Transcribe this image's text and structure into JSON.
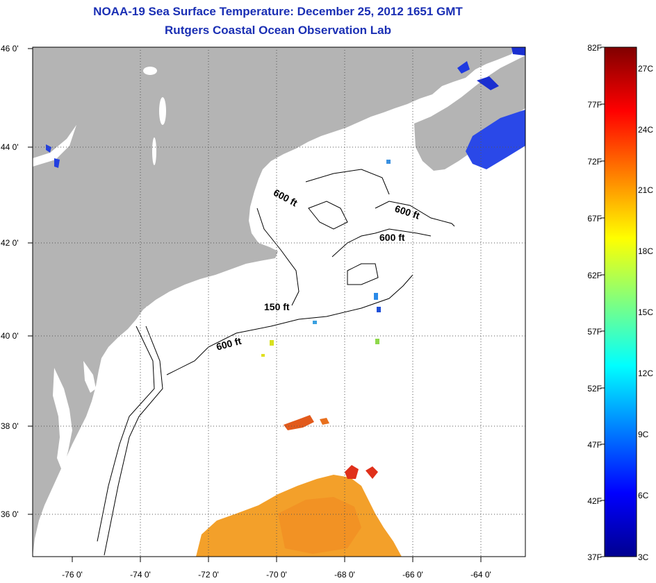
{
  "header": {
    "title": "NOAA-19 Sea Surface Temperature:  December 25, 2012 1651 GMT",
    "subtitle": "Rutgers Coastal Ocean Observation Lab"
  },
  "map": {
    "lon_ticks": [
      "-76 0'",
      "-74 0'",
      "-72 0'",
      "-70 0'",
      "-68 0'",
      "-66 0'",
      "-64 0'"
    ],
    "lat_ticks": [
      "46 0'",
      "44 0'",
      "42 0'",
      "40 0'",
      "38 0'",
      "36 0'"
    ],
    "contour_labels": [
      "600 ft",
      "600 ft",
      "600 ft",
      "150 ft",
      "600 ft"
    ],
    "colors": {
      "land": "#b4b4b4",
      "ocean": "#ffffff",
      "grid": "#555555"
    }
  },
  "colorbar": {
    "f_labels": [
      "82F",
      "77F",
      "72F",
      "67F",
      "62F",
      "57F",
      "52F",
      "47F",
      "42F",
      "37F"
    ],
    "c_labels": [
      "27C",
      "24C",
      "21C",
      "18C",
      "15C",
      "12C",
      "9C",
      "6C",
      "3C"
    ]
  }
}
